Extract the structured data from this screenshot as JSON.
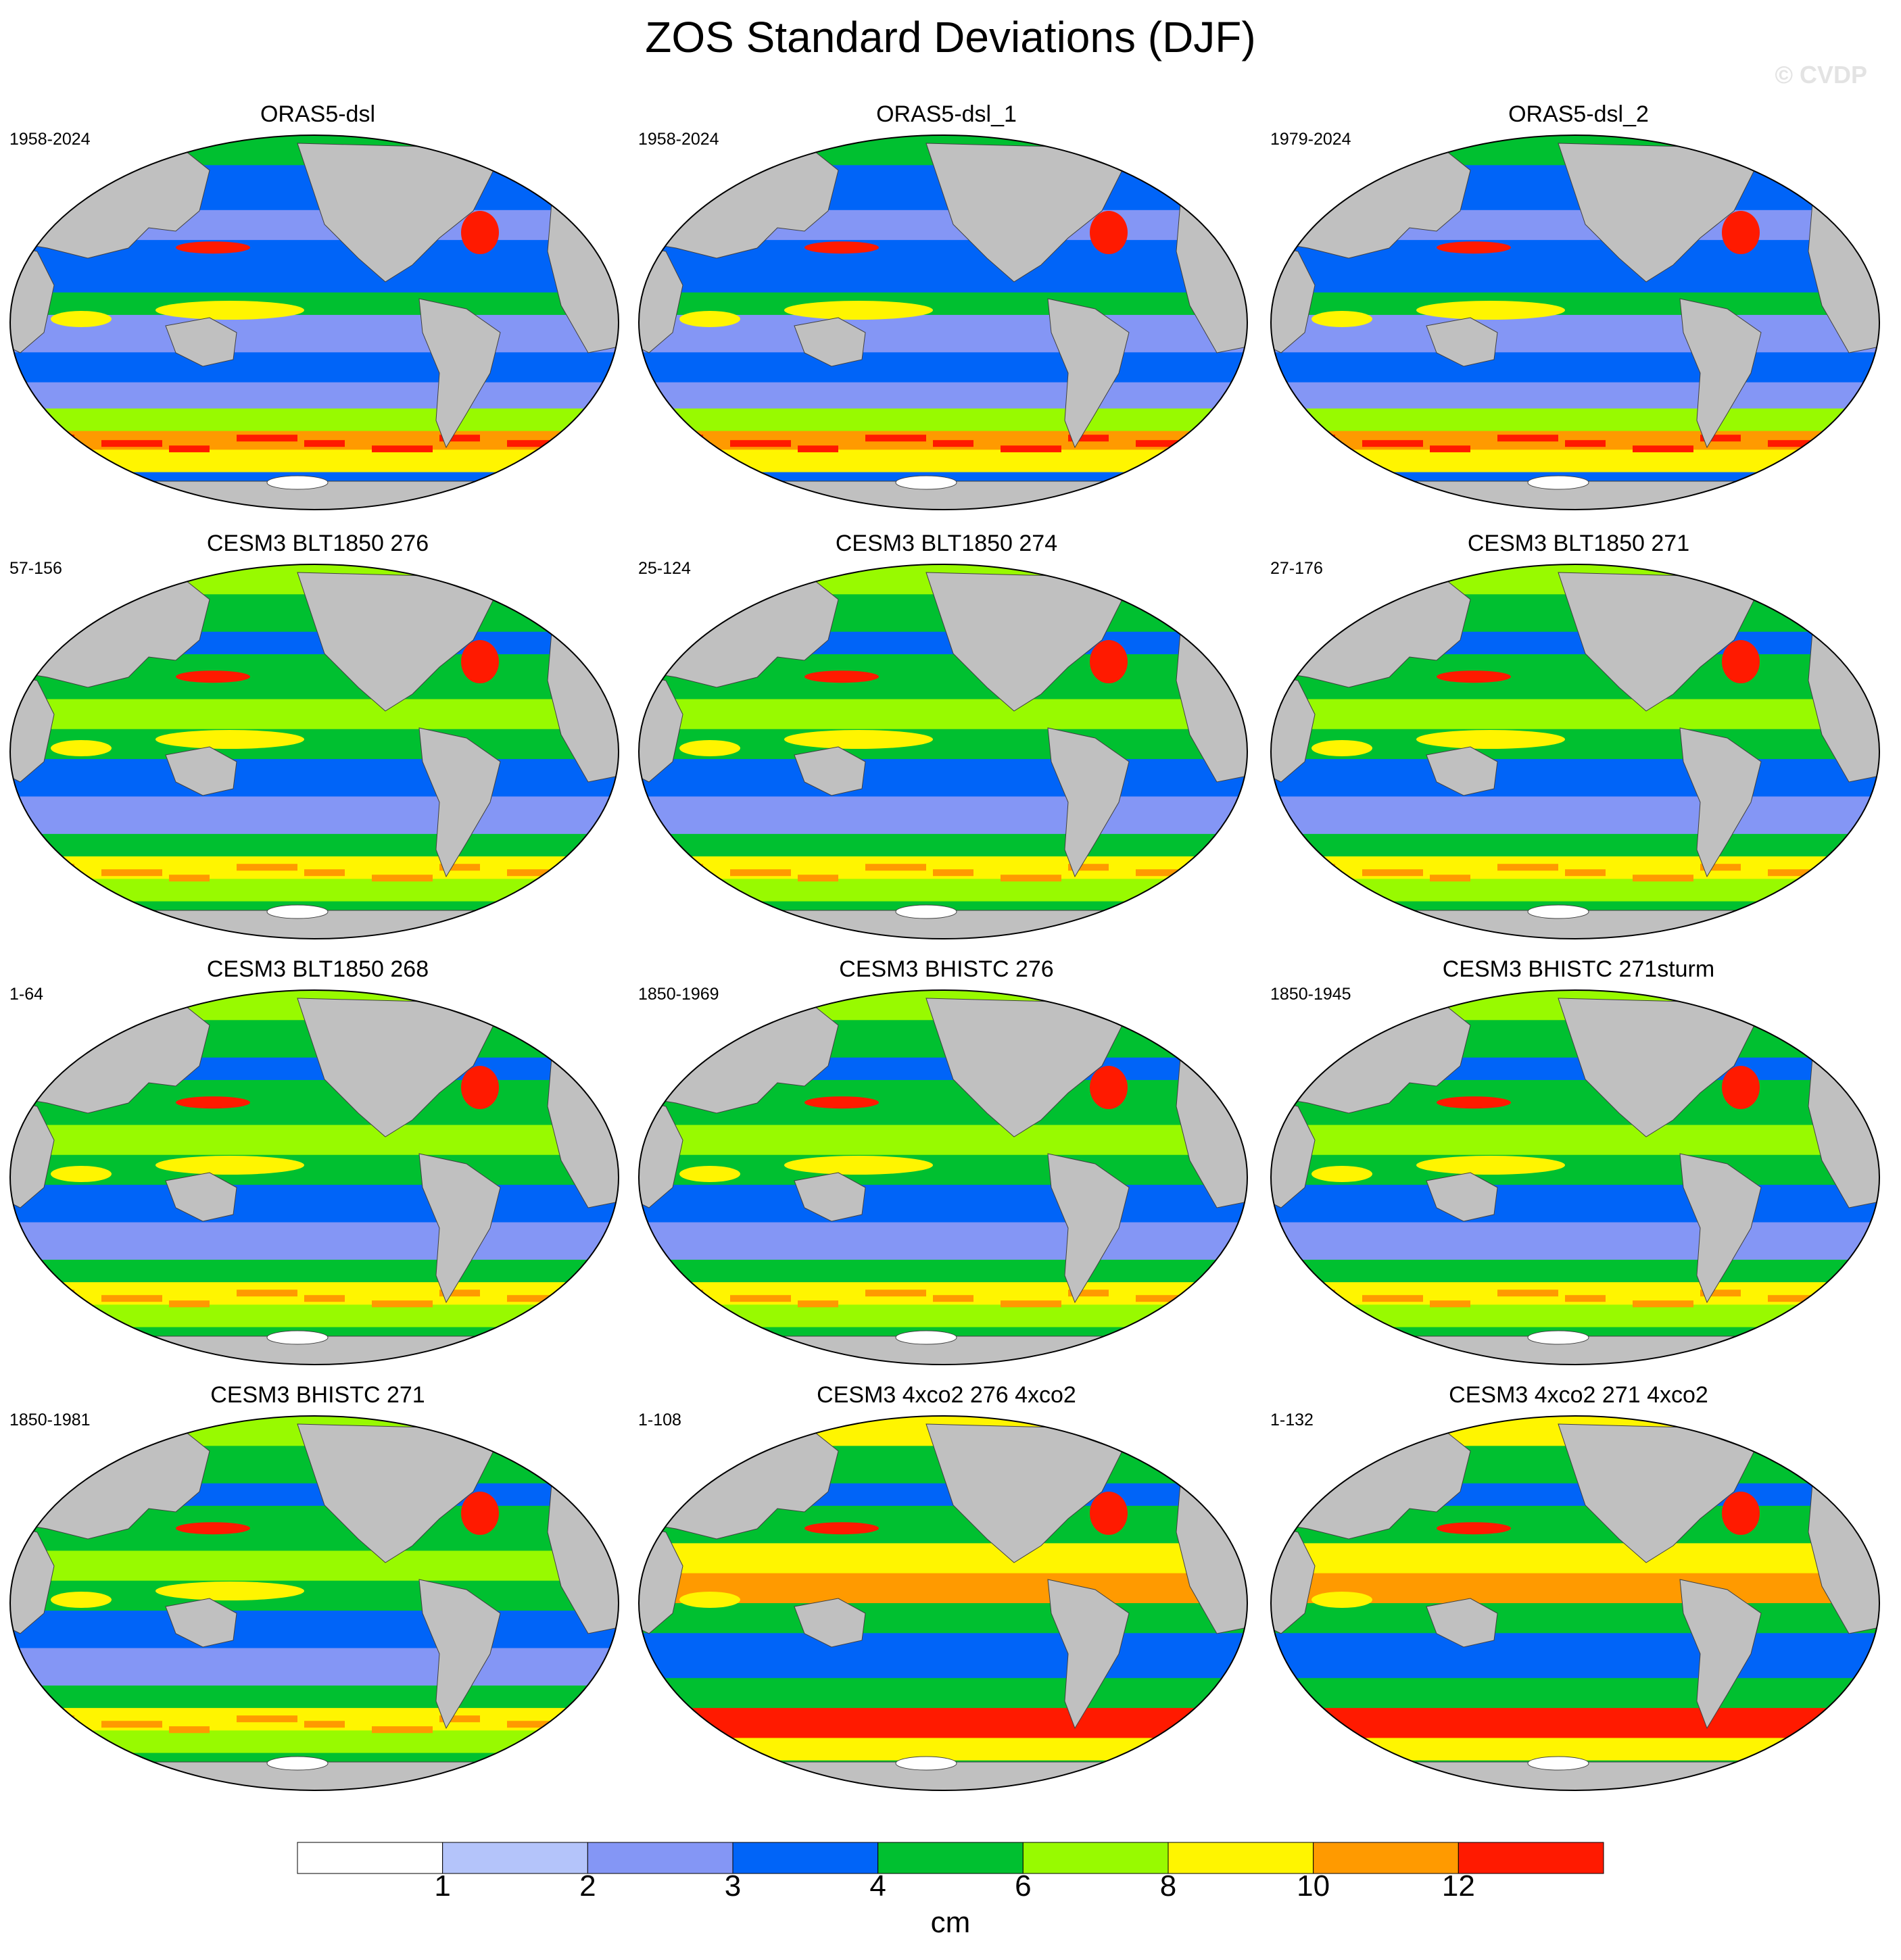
{
  "title": "ZOS Standard Deviations (DJF)",
  "watermark": "© CVDP",
  "panels": [
    {
      "title": "ORAS5-dsl",
      "years": "1958-2024",
      "style": "obs"
    },
    {
      "title": "ORAS5-dsl_1",
      "years": "1958-2024",
      "style": "obs"
    },
    {
      "title": "ORAS5-dsl_2",
      "years": "1979-2024",
      "style": "obs"
    },
    {
      "title": "CESM3 BLT1850 276",
      "years": "57-156",
      "style": "model"
    },
    {
      "title": "CESM3 BLT1850 274",
      "years": "25-124",
      "style": "model"
    },
    {
      "title": "CESM3 BLT1850 271",
      "years": "27-176",
      "style": "model"
    },
    {
      "title": "CESM3 BLT1850 268",
      "years": "1-64",
      "style": "model"
    },
    {
      "title": "CESM3 BHISTC 276",
      "years": "1850-1969",
      "style": "model"
    },
    {
      "title": "CESM3 BHISTC 271sturm",
      "years": "1850-1945",
      "style": "model"
    },
    {
      "title": "CESM3 BHISTC 271",
      "years": "1850-1981",
      "style": "model"
    },
    {
      "title": "CESM3 4xco2 276 4xco2",
      "years": "1-108",
      "style": "co2"
    },
    {
      "title": "CESM3 4xco2 271 4xco2",
      "years": "1-132",
      "style": "co2"
    }
  ],
  "colorbar": {
    "units": "cm",
    "labels": [
      "1",
      "2",
      "3",
      "4",
      "6",
      "8",
      "10",
      "12"
    ],
    "colors": [
      "#ffffff",
      "#b4c4fa",
      "#8496f5",
      "#0064f8",
      "#00c030",
      "#98fa00",
      "#fff500",
      "#ff9a00",
      "#ff1a00"
    ]
  },
  "land_color": "#c0c0c0"
}
